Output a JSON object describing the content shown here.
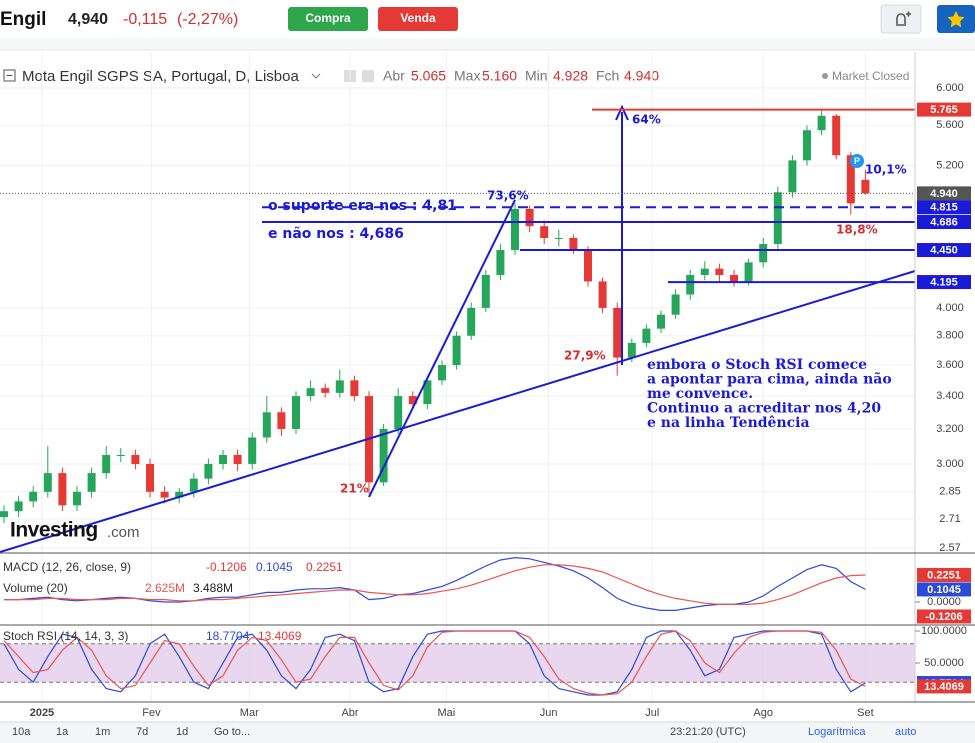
{
  "header": {
    "symbol": "Engil",
    "price": "4,940",
    "change": "-0,115",
    "change_pct": "(-2,27%)",
    "buy": "Compra",
    "sell": "Venda"
  },
  "chart_data": {
    "type": "candlestick",
    "title": "Mota Engil SGPS SA, Portugal, D, Lisboa",
    "ohlc_summary": [
      {
        "label": "Abr",
        "value": "5.065"
      },
      {
        "label": "Max",
        "value": "5.160"
      },
      {
        "label": "Min",
        "value": "4.928"
      },
      {
        "label": "Fch",
        "value": "4.940"
      }
    ],
    "status": "Market Closed",
    "log_scale": true,
    "grid": true,
    "up_color": "#26a65b",
    "down_color": "#e53935",
    "ylim": [
      2.546,
      6.34
    ],
    "yticks": [
      {
        "value": 6,
        "label": "6.000"
      },
      {
        "value": 5.6,
        "label": "5.600"
      },
      {
        "value": 5.2,
        "label": "5.200"
      },
      {
        "value": 4,
        "label": "4.000"
      },
      {
        "value": 3.8,
        "label": "3.800"
      },
      {
        "value": 3.6,
        "label": "3.600"
      },
      {
        "value": 3.4,
        "label": "3.400"
      },
      {
        "value": 3.2,
        "label": "3.200"
      },
      {
        "value": 3,
        "label": "3.000"
      },
      2.85,
      2.71,
      2.57
    ],
    "xticks": [
      {
        "value": 2.6,
        "label": "2025"
      },
      {
        "value": 10.1,
        "label": "Fev"
      },
      {
        "value": 16.8,
        "label": "Mar"
      },
      {
        "value": 23.7,
        "label": "Abr"
      },
      {
        "value": 30.3,
        "label": "Mai"
      },
      {
        "value": 37.3,
        "label": "Jun"
      },
      {
        "value": 44.4,
        "label": "Jul"
      },
      {
        "value": 52,
        "label": "Ago"
      },
      {
        "value": 59,
        "label": "Set"
      }
    ],
    "open": [
      2.72,
      2.75,
      2.8,
      2.85,
      2.95,
      2.78,
      2.85,
      2.95,
      3.05,
      3.05,
      3.0,
      2.85,
      2.82,
      2.85,
      2.92,
      3.0,
      3.05,
      3.0,
      3.15,
      3.3,
      3.2,
      3.4,
      3.45,
      3.42,
      3.5,
      3.4,
      2.9,
      3.2,
      3.4,
      3.35,
      3.5,
      3.6,
      3.8,
      4.0,
      4.25,
      4.45,
      4.8,
      4.65,
      4.55,
      4.55,
      4.45,
      4.2,
      4.0,
      3.65,
      3.75,
      3.85,
      3.95,
      4.1,
      4.25,
      4.3,
      4.25,
      4.2,
      4.35,
      4.5,
      4.95,
      5.25,
      5.55,
      5.7,
      5.3,
      5.065
    ],
    "high": [
      2.78,
      2.83,
      2.88,
      3.1,
      2.98,
      2.88,
      2.98,
      3.1,
      3.09,
      3.08,
      3.03,
      2.88,
      2.87,
      2.95,
      3.03,
      3.08,
      3.08,
      3.18,
      3.4,
      3.33,
      3.43,
      3.5,
      3.48,
      3.57,
      3.53,
      3.43,
      3.23,
      3.45,
      3.43,
      3.53,
      3.63,
      3.83,
      4.04,
      4.29,
      4.5,
      4.85,
      4.83,
      4.7,
      4.62,
      4.58,
      4.48,
      4.23,
      4.04,
      3.78,
      3.88,
      3.98,
      4.14,
      4.29,
      4.36,
      4.34,
      4.29,
      4.38,
      4.55,
      5.0,
      5.3,
      5.6,
      5.765,
      5.72,
      5.33,
      5.16
    ],
    "low": [
      2.69,
      2.72,
      2.77,
      2.82,
      2.75,
      2.75,
      2.82,
      2.92,
      3.01,
      2.97,
      2.82,
      2.79,
      2.79,
      2.82,
      2.89,
      2.97,
      2.96,
      2.97,
      3.12,
      3.16,
      3.17,
      3.37,
      3.39,
      3.39,
      3.37,
      2.84,
      2.88,
      3.17,
      3.32,
      3.32,
      3.47,
      3.57,
      3.77,
      3.97,
      4.21,
      4.41,
      4.6,
      4.5,
      4.48,
      4.42,
      4.16,
      3.96,
      3.53,
      3.62,
      3.72,
      3.82,
      3.92,
      4.06,
      4.21,
      4.2,
      4.16,
      4.17,
      4.31,
      4.46,
      4.9,
      5.2,
      5.5,
      5.26,
      4.75,
      4.928
    ],
    "close": [
      2.75,
      2.8,
      2.85,
      2.95,
      2.78,
      2.85,
      2.95,
      3.05,
      3.05,
      3.0,
      2.85,
      2.82,
      2.85,
      2.92,
      3.0,
      3.05,
      3.0,
      3.15,
      3.3,
      3.2,
      3.4,
      3.45,
      3.42,
      3.5,
      3.4,
      2.9,
      3.2,
      3.4,
      3.35,
      3.5,
      3.6,
      3.8,
      4.0,
      4.25,
      4.45,
      4.8,
      4.65,
      4.55,
      4.55,
      4.45,
      4.2,
      4.0,
      3.65,
      3.75,
      3.85,
      3.95,
      4.1,
      4.25,
      4.3,
      4.25,
      4.2,
      4.35,
      4.5,
      4.95,
      5.25,
      5.55,
      5.7,
      5.3,
      4.85,
      4.94
    ],
    "last": {
      "value": 4.94,
      "label": "4.940"
    },
    "levels": [
      {
        "value": 5.765,
        "color": "#e53935"
      },
      4.815,
      4.686,
      {
        "value": 4.45,
        "label": "4.450"
      },
      4.195
    ],
    "level_color": "#1a1ad8",
    "annotations": [
      "o suporte era nos : 4,81",
      "e não nos : 4,686",
      "73,6%",
      "64%",
      "10,1%",
      "18,8%",
      "27,9%",
      "21%",
      "P"
    ],
    "note": [
      "embora o Stoch RSI comece",
      "a apontar para cima, ainda não",
      "me convence.",
      "Continuo a acreditar nos 4,20",
      "e na linha Tendência"
    ],
    "macd": {
      "title": "MACD (12, 26, close, 9)",
      "ylim": [
        -0.175,
        0.383
      ],
      "yticks": [
        {
          "value": 0,
          "label": "0.0000"
        }
      ],
      "legend": [
        {
          "value": -0.1206,
          "color": "#e53935"
        },
        {
          "value": 0.1045,
          "color": "#2d4bd8"
        },
        {
          "value": 0.2251,
          "color": "#e53935"
        }
      ],
      "series": [
        {
          "color": "#2d4bd8",
          "values": [
            0.02,
            0.02,
            0.03,
            0.04,
            0.02,
            0.01,
            0.02,
            0.03,
            0.04,
            0.03,
            0.01,
            0.0,
            0.0,
            0.01,
            0.03,
            0.04,
            0.04,
            0.06,
            0.08,
            0.08,
            0.1,
            0.11,
            0.11,
            0.12,
            0.1,
            0.02,
            0.03,
            0.06,
            0.07,
            0.1,
            0.13,
            0.18,
            0.24,
            0.3,
            0.35,
            0.37,
            0.36,
            0.33,
            0.3,
            0.26,
            0.2,
            0.12,
            0.03,
            -0.02,
            -0.05,
            -0.07,
            -0.07,
            -0.05,
            -0.03,
            -0.02,
            -0.02,
            0.0,
            0.05,
            0.13,
            0.2,
            0.27,
            0.31,
            0.28,
            0.17,
            0.1045
          ]
        },
        {
          "color": "#ef5350",
          "values": [
            0.02,
            0.02,
            0.02,
            0.03,
            0.03,
            0.02,
            0.02,
            0.02,
            0.03,
            0.03,
            0.02,
            0.02,
            0.01,
            0.01,
            0.02,
            0.02,
            0.03,
            0.04,
            0.05,
            0.06,
            0.07,
            0.08,
            0.09,
            0.1,
            0.1,
            0.08,
            0.07,
            0.06,
            0.06,
            0.07,
            0.09,
            0.11,
            0.14,
            0.18,
            0.22,
            0.26,
            0.29,
            0.31,
            0.31,
            0.3,
            0.28,
            0.25,
            0.2,
            0.15,
            0.1,
            0.06,
            0.03,
            0.01,
            -0.01,
            -0.02,
            -0.02,
            -0.02,
            -0.01,
            0.02,
            0.06,
            0.11,
            0.16,
            0.2,
            0.22,
            0.2251
          ]
        }
      ]
    },
    "volume": {
      "title": "Volume (20)",
      "legend": [
        "2.625M",
        "3.488M"
      ]
    },
    "stoch": {
      "title": "Stoch RSI (14, 14, 3, 3)",
      "ylim": [
        -7.8,
        106.25
      ],
      "band": [
        20,
        80
      ],
      "band_color": "#e1c8ea",
      "yticks": [
        {
          "value": 100,
          "label": "100.0000"
        },
        {
          "value": 50,
          "label": "50.0000"
        }
      ],
      "legend": [
        {
          "value": 18.7704,
          "color": "#2d4bd8"
        },
        {
          "value": 13.4069,
          "color": "#e53935"
        }
      ],
      "series": [
        {
          "color": "#2d4bd8",
          "values": [
            80,
            40,
            20,
            60,
            95,
            90,
            40,
            10,
            5,
            30,
            80,
            95,
            60,
            20,
            10,
            50,
            90,
            95,
            70,
            30,
            10,
            40,
            90,
            95,
            85,
            20,
            5,
            10,
            60,
            95,
            100,
            100,
            100,
            100,
            100,
            100,
            80,
            30,
            10,
            5,
            0,
            0,
            5,
            40,
            90,
            100,
            100,
            70,
            30,
            40,
            90,
            95,
            100,
            100,
            100,
            100,
            95,
            40,
            5,
            18.7704
          ]
        },
        {
          "color": "#ef5350",
          "values": [
            85,
            60,
            35,
            40,
            70,
            90,
            70,
            30,
            10,
            15,
            50,
            85,
            80,
            45,
            15,
            30,
            70,
            90,
            85,
            55,
            20,
            25,
            60,
            90,
            90,
            50,
            15,
            8,
            30,
            75,
            98,
            100,
            100,
            100,
            100,
            100,
            90,
            60,
            25,
            10,
            3,
            0,
            2,
            20,
            60,
            95,
            100,
            85,
            50,
            35,
            65,
            90,
            98,
            100,
            100,
            100,
            98,
            70,
            25,
            13.4069
          ]
        }
      ]
    }
  },
  "footer": {
    "ranges": [
      "10a",
      "1a",
      "1m",
      "7d",
      "1d"
    ],
    "goto": "Go to...",
    "time": "23:21:20 (UTC)",
    "log": "Logarítmica",
    "auto": "auto"
  },
  "brand": {
    "name": "Investing",
    "suffix": ".com"
  }
}
